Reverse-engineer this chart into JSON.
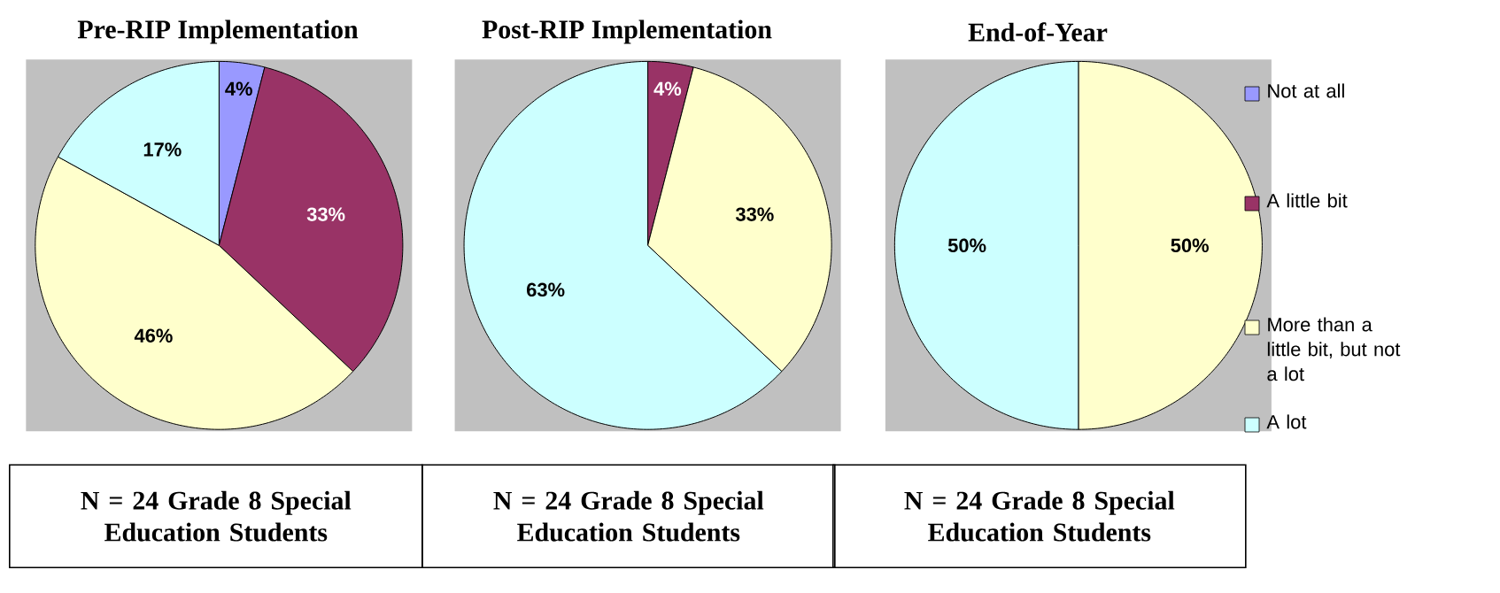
{
  "chart_data": [
    {
      "type": "pie",
      "title": "Pre-RIP Implementation",
      "categories": [
        null,
        null,
        null,
        null
      ],
      "values": [
        4,
        33,
        46,
        17
      ],
      "value_labels": [
        "4%",
        "33%",
        "46%",
        "17%"
      ],
      "colors": [
        "#9999ff",
        "#993366",
        "#ffffcc",
        "#ccffff"
      ],
      "annotations": [
        "N = 24 Grade 8 Special Education Students"
      ]
    },
    {
      "type": "pie",
      "title": "Post-RIP Implementation",
      "categories": [
        null,
        null,
        null
      ],
      "values": [
        4,
        33,
        63
      ],
      "value_labels": [
        "4%",
        "33%",
        "63%"
      ],
      "colors": [
        "#993366",
        "#ffffcc",
        "#ccffff"
      ],
      "annotations": [
        "N = 24 Grade 8 Special Education Students"
      ]
    },
    {
      "type": "pie",
      "title": "End-of-Year",
      "categories": [
        "Not at all",
        "A little bit",
        "More than a little bit, but not a lot",
        "A lot"
      ],
      "values": [
        0,
        0,
        50,
        50
      ],
      "value_labels": [
        null,
        null,
        "50%",
        "50%"
      ],
      "colors": [
        "#9999ff",
        "#993366",
        "#ffffcc",
        "#ccffff"
      ],
      "legend": "right",
      "annotations": [
        "N = 24 Grade 8 Special Education Students"
      ]
    }
  ]
}
